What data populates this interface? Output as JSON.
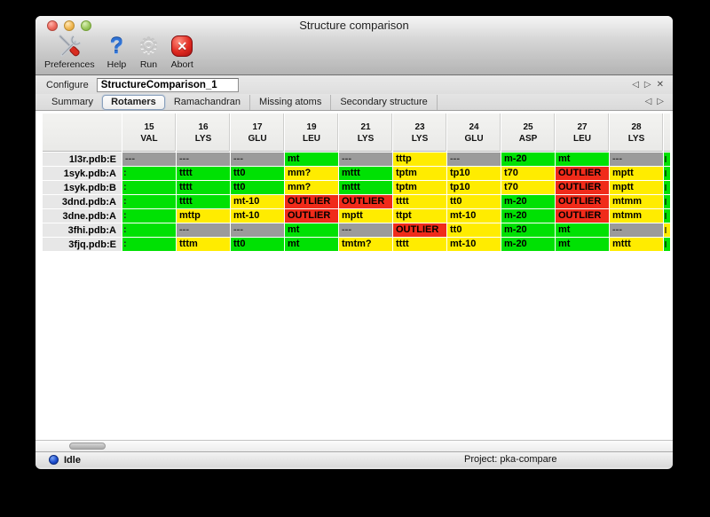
{
  "window": {
    "title": "Structure comparison"
  },
  "toolbar": {
    "items": [
      {
        "label": "Preferences",
        "icon": "tools-icon"
      },
      {
        "label": "Help",
        "icon": "question-icon"
      },
      {
        "label": "Run",
        "icon": "gear-icon"
      },
      {
        "label": "Abort",
        "icon": "abort-icon"
      }
    ]
  },
  "configure": {
    "label": "Configure",
    "value": "StructureComparison_1",
    "nav": {
      "prev": "◁",
      "next": "▷",
      "close": "✕"
    }
  },
  "tabs": [
    {
      "label": "Summary",
      "selected": false
    },
    {
      "label": "Rotamers",
      "selected": true
    },
    {
      "label": "Ramachandran",
      "selected": false
    },
    {
      "label": "Missing atoms",
      "selected": false
    },
    {
      "label": "Secondary structure",
      "selected": false
    }
  ],
  "tabnav": {
    "prev": "◁",
    "next": "▷"
  },
  "colors": {
    "green": "#00e103",
    "yellow": "#ffec00",
    "red": "#f02b1a",
    "gray": "#9b9b9b"
  },
  "table": {
    "columns": [
      {
        "num": "15",
        "res": "VAL"
      },
      {
        "num": "16",
        "res": "LYS"
      },
      {
        "num": "17",
        "res": "GLU"
      },
      {
        "num": "19",
        "res": "LEU"
      },
      {
        "num": "21",
        "res": "LYS"
      },
      {
        "num": "23",
        "res": "LYS"
      },
      {
        "num": "24",
        "res": "GLU"
      },
      {
        "num": "25",
        "res": "ASP"
      },
      {
        "num": "27",
        "res": "LEU"
      },
      {
        "num": "28",
        "res": "LYS"
      }
    ],
    "rows": [
      {
        "name": "1l3r.pdb:E",
        "cells": [
          {
            "text": "---",
            "color": "gray"
          },
          {
            "text": "---",
            "color": "gray"
          },
          {
            "text": "---",
            "color": "gray"
          },
          {
            "text": "mt",
            "color": "green"
          },
          {
            "text": "---",
            "color": "gray"
          },
          {
            "text": "tttp",
            "color": "yellow"
          },
          {
            "text": "---",
            "color": "gray"
          },
          {
            "text": "m-20",
            "color": "green"
          },
          {
            "text": "mt",
            "color": "green"
          },
          {
            "text": "---",
            "color": "gray"
          }
        ]
      },
      {
        "name": "1syk.pdb:A",
        "cells": [
          {
            "text": ":",
            "color": "green",
            "flush": true
          },
          {
            "text": "tttt",
            "color": "green"
          },
          {
            "text": "tt0",
            "color": "green"
          },
          {
            "text": "mm?",
            "color": "yellow"
          },
          {
            "text": "mttt",
            "color": "green"
          },
          {
            "text": "tptm",
            "color": "yellow"
          },
          {
            "text": "tp10",
            "color": "yellow"
          },
          {
            "text": "t70",
            "color": "yellow"
          },
          {
            "text": "OUTLIER",
            "color": "red"
          },
          {
            "text": "mptt",
            "color": "yellow"
          }
        ]
      },
      {
        "name": "1syk.pdb:B",
        "cells": [
          {
            "text": ":",
            "color": "green",
            "flush": true
          },
          {
            "text": "tttt",
            "color": "green"
          },
          {
            "text": "tt0",
            "color": "green"
          },
          {
            "text": "mm?",
            "color": "yellow"
          },
          {
            "text": "mttt",
            "color": "green"
          },
          {
            "text": "tptm",
            "color": "yellow"
          },
          {
            "text": "tp10",
            "color": "yellow"
          },
          {
            "text": "t70",
            "color": "yellow"
          },
          {
            "text": "OUTLIER",
            "color": "red"
          },
          {
            "text": "mptt",
            "color": "yellow"
          }
        ]
      },
      {
        "name": "3dnd.pdb:A",
        "cells": [
          {
            "text": ":",
            "color": "green",
            "flush": true
          },
          {
            "text": "tttt",
            "color": "green"
          },
          {
            "text": "mt-10",
            "color": "yellow"
          },
          {
            "text": "OUTLIER",
            "color": "red"
          },
          {
            "text": "OUTLIER",
            "color": "red"
          },
          {
            "text": "tttt",
            "color": "yellow"
          },
          {
            "text": "tt0",
            "color": "yellow"
          },
          {
            "text": "m-20",
            "color": "green"
          },
          {
            "text": "OUTLIER",
            "color": "red"
          },
          {
            "text": "mtmm",
            "color": "yellow"
          }
        ]
      },
      {
        "name": "3dne.pdb:A",
        "cells": [
          {
            "text": ":",
            "color": "green",
            "flush": true
          },
          {
            "text": "mttp",
            "color": "yellow"
          },
          {
            "text": "mt-10",
            "color": "yellow"
          },
          {
            "text": "OUTLIER",
            "color": "red"
          },
          {
            "text": "mptt",
            "color": "yellow"
          },
          {
            "text": "ttpt",
            "color": "yellow"
          },
          {
            "text": "mt-10",
            "color": "yellow"
          },
          {
            "text": "m-20",
            "color": "green"
          },
          {
            "text": "OUTLIER",
            "color": "red"
          },
          {
            "text": "mtmm",
            "color": "yellow"
          }
        ]
      },
      {
        "name": "3fhi.pdb:A",
        "cells": [
          {
            "text": ":",
            "color": "green",
            "flush": true
          },
          {
            "text": "---",
            "color": "gray"
          },
          {
            "text": "---",
            "color": "gray"
          },
          {
            "text": "mt",
            "color": "green"
          },
          {
            "text": "---",
            "color": "gray"
          },
          {
            "text": "OUTLIER",
            "color": "red"
          },
          {
            "text": "tt0",
            "color": "yellow"
          },
          {
            "text": "m-20",
            "color": "green"
          },
          {
            "text": "mt",
            "color": "green"
          },
          {
            "text": "---",
            "color": "gray"
          }
        ]
      },
      {
        "name": "3fjq.pdb:E",
        "cells": [
          {
            "text": ":",
            "color": "green",
            "flush": true
          },
          {
            "text": "tttm",
            "color": "yellow"
          },
          {
            "text": "tt0",
            "color": "green"
          },
          {
            "text": "mt",
            "color": "green"
          },
          {
            "text": "tmtm?",
            "color": "yellow"
          },
          {
            "text": "tttt",
            "color": "yellow"
          },
          {
            "text": "mt-10",
            "color": "yellow"
          },
          {
            "text": "m-20",
            "color": "green"
          },
          {
            "text": "mt",
            "color": "green"
          },
          {
            "text": "mttt",
            "color": "yellow"
          }
        ]
      }
    ],
    "partial_column": [
      "green",
      "green",
      "green",
      "green",
      "green",
      "yellow",
      "green"
    ]
  },
  "status": {
    "left": "Idle",
    "right": "Project: pka-compare"
  }
}
